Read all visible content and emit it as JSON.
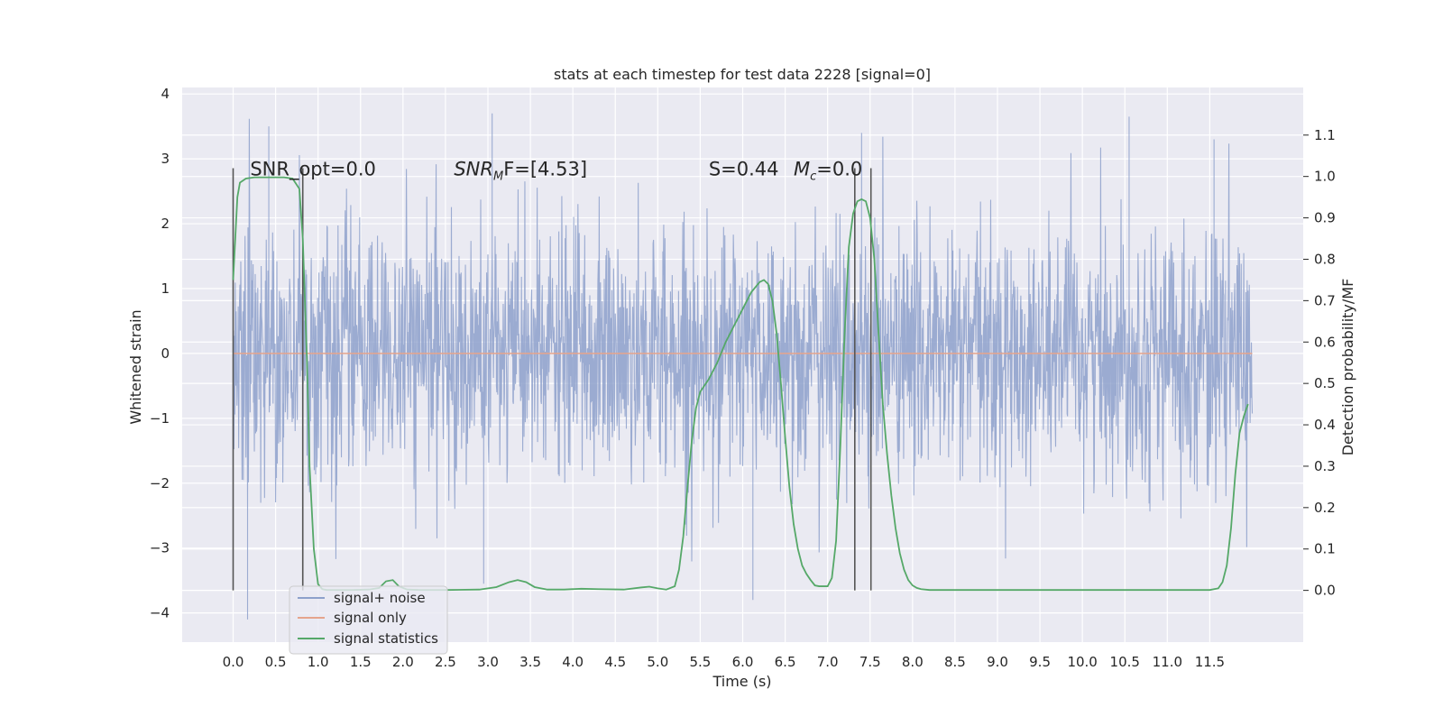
{
  "chart_data": {
    "type": "line",
    "title": "stats at each timestep for test data 2228 [signal=0]",
    "xlabel": "Time (s)",
    "ylabel_left": "Whitened strain",
    "ylabel_right": "Detection probability/MF",
    "xlim": [
      -0.6,
      12.6
    ],
    "ylim_left": [
      -4.45,
      4.1
    ],
    "ylim_right": [
      -0.125,
      1.215
    ],
    "x_ticks": [
      0.0,
      0.5,
      1.0,
      1.5,
      2.0,
      2.5,
      3.0,
      3.5,
      4.0,
      4.5,
      5.0,
      5.5,
      6.0,
      6.5,
      7.0,
      7.5,
      8.0,
      8.5,
      9.0,
      9.5,
      10.0,
      10.5,
      11.0,
      11.5
    ],
    "x_tick_labels": [
      "0.0",
      "0.5",
      "1.0",
      "1.5",
      "2.0",
      "2.5",
      "3.0",
      "3.5",
      "4.0",
      "4.5",
      "5.0",
      "5.5",
      "6.0",
      "6.5",
      "7.0",
      "7.5",
      "8.0",
      "8.5",
      "9.0",
      "9.5",
      "10.0",
      "10.5",
      "11.0",
      "11.5"
    ],
    "y_left_ticks": [
      4,
      3,
      2,
      1,
      0,
      -1,
      -2,
      -3,
      -4
    ],
    "y_left_tick_labels": [
      "4",
      "3",
      "2",
      "1",
      "0",
      "−1",
      "−2",
      "−3",
      "−4"
    ],
    "y_right_ticks": [
      1.1,
      1.0,
      0.9,
      0.8,
      0.7,
      0.6,
      0.5,
      0.4,
      0.3,
      0.2,
      0.1,
      0.0
    ],
    "y_right_tick_labels": [
      "1.1",
      "1.0",
      "0.9",
      "0.8",
      "0.7",
      "0.6",
      "0.5",
      "0.4",
      "0.3",
      "0.2",
      "0.1",
      "0.0"
    ],
    "grid": true,
    "legend_location": "lower-left",
    "series": [
      {
        "name": "signal+ noise",
        "color": "#8da0cb",
        "axis": "left",
        "x_range": [
          0.0,
          12.0
        ],
        "approx_amplitude_range": [
          -4.1,
          3.7
        ],
        "notable_peaks": [
          [
            0.17,
            -4.1
          ],
          [
            0.42,
            3.5
          ],
          [
            2.95,
            -3.55
          ],
          [
            3.05,
            3.7
          ],
          [
            6.12,
            -3.8
          ],
          [
            7.4,
            3.4
          ],
          [
            10.55,
            3.65
          ],
          [
            11.55,
            3.3
          ]
        ]
      },
      {
        "name": "signal only",
        "color": "#e5a48c",
        "axis": "left",
        "x": [
          0.0,
          12.0
        ],
        "values": [
          0.0,
          0.0
        ]
      },
      {
        "name": "signal statistics",
        "color": "#55a868",
        "axis": "right",
        "x": [
          0.0,
          0.05,
          0.08,
          0.15,
          0.25,
          0.4,
          0.6,
          0.7,
          0.78,
          0.82,
          0.87,
          0.9,
          0.95,
          1.0,
          1.05,
          1.1,
          1.2,
          1.4,
          1.6,
          1.72,
          1.8,
          1.88,
          1.95,
          2.05,
          2.2,
          2.5,
          2.9,
          3.1,
          3.25,
          3.35,
          3.45,
          3.55,
          3.7,
          3.9,
          4.1,
          4.3,
          4.6,
          4.8,
          4.9,
          5.0,
          5.1,
          5.2,
          5.25,
          5.3,
          5.35,
          5.4,
          5.45,
          5.5,
          5.6,
          5.7,
          5.8,
          5.9,
          6.0,
          6.1,
          6.2,
          6.25,
          6.3,
          6.35,
          6.4,
          6.45,
          6.5,
          6.55,
          6.6,
          6.65,
          6.7,
          6.75,
          6.8,
          6.85,
          6.9,
          7.0,
          7.05,
          7.1,
          7.15,
          7.2,
          7.25,
          7.3,
          7.35,
          7.4,
          7.45,
          7.5,
          7.55,
          7.6,
          7.65,
          7.7,
          7.75,
          7.8,
          7.85,
          7.9,
          7.95,
          8.0,
          8.05,
          8.1,
          8.2,
          8.4,
          9.0,
          10.0,
          11.0,
          11.5,
          11.6,
          11.65,
          11.7,
          11.75,
          11.8,
          11.85,
          11.9,
          11.95
        ],
        "values": [
          0.75,
          0.95,
          0.985,
          0.995,
          0.998,
          0.998,
          0.998,
          0.995,
          0.97,
          0.85,
          0.55,
          0.3,
          0.1,
          0.015,
          0.003,
          0.001,
          0.001,
          0.001,
          0.002,
          0.006,
          0.022,
          0.025,
          0.01,
          0.002,
          0.001,
          0.001,
          0.002,
          0.008,
          0.02,
          0.025,
          0.02,
          0.008,
          0.002,
          0.002,
          0.004,
          0.003,
          0.002,
          0.007,
          0.009,
          0.005,
          0.002,
          0.01,
          0.05,
          0.13,
          0.25,
          0.36,
          0.44,
          0.48,
          0.51,
          0.55,
          0.6,
          0.64,
          0.68,
          0.72,
          0.745,
          0.75,
          0.74,
          0.7,
          0.62,
          0.5,
          0.37,
          0.25,
          0.16,
          0.1,
          0.06,
          0.04,
          0.025,
          0.012,
          0.01,
          0.01,
          0.03,
          0.12,
          0.35,
          0.62,
          0.83,
          0.91,
          0.94,
          0.945,
          0.94,
          0.9,
          0.8,
          0.62,
          0.45,
          0.33,
          0.23,
          0.15,
          0.09,
          0.05,
          0.025,
          0.012,
          0.006,
          0.003,
          0.001,
          0.001,
          0.001,
          0.001,
          0.001,
          0.001,
          0.005,
          0.02,
          0.06,
          0.15,
          0.28,
          0.38,
          0.42,
          0.45
        ]
      }
    ],
    "vertical_lines": [
      0.0,
      0.82,
      7.32,
      7.51
    ],
    "annotations": [
      {
        "text": "SNR_opt=0.0",
        "x": 0.2,
        "y_right": 1.0
      },
      {
        "text": "SNR",
        "sub": "M",
        "tail": "F=[4.53]",
        "x": 2.6,
        "y_right": 1.0
      },
      {
        "text": "S=0.44",
        "x": 5.6,
        "y_right": 1.0
      },
      {
        "text": "M",
        "sub": "c",
        "tail": "=0.0",
        "x": 6.6,
        "y_right": 1.0
      }
    ],
    "colors": {
      "plot_background": "#eaeaf2",
      "grid": "#ffffff",
      "vline": "#555555"
    }
  }
}
